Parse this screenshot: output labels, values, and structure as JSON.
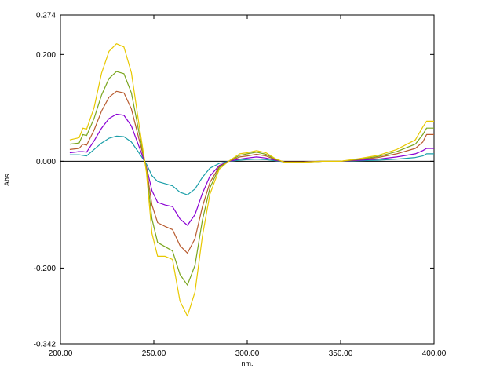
{
  "chart_data": {
    "type": "line",
    "xlabel": "nm.",
    "ylabel": "Abs.",
    "xlim": [
      200,
      400
    ],
    "ylim": [
      -0.342,
      0.274
    ],
    "x_ticks": [
      {
        "value": 200,
        "label": "200.00"
      },
      {
        "value": 250,
        "label": "250.00"
      },
      {
        "value": 300,
        "label": "300.00"
      },
      {
        "value": 350,
        "label": "350.00"
      },
      {
        "value": 400,
        "label": "400.00"
      }
    ],
    "y_ticks": [
      {
        "value": 0.274,
        "label": "0.274"
      },
      {
        "value": 0.2,
        "label": "0.200"
      },
      {
        "value": 0.0,
        "label": "0.000"
      },
      {
        "value": -0.2,
        "label": "-0.200"
      },
      {
        "value": -0.342,
        "label": "-0.342"
      }
    ],
    "grid": false,
    "legend": "none",
    "baseline": 0,
    "series": [
      {
        "color": "#1a9ea8",
        "points": [
          [
            205,
            0.012
          ],
          [
            210,
            0.012
          ],
          [
            212,
            0.011
          ],
          [
            214,
            0.01
          ],
          [
            218,
            0.022
          ],
          [
            222,
            0.034
          ],
          [
            226,
            0.043
          ],
          [
            230,
            0.047
          ],
          [
            234,
            0.046
          ],
          [
            238,
            0.036
          ],
          [
            242,
            0.016
          ],
          [
            246,
            -0.005
          ],
          [
            249,
            -0.027
          ],
          [
            252,
            -0.038
          ],
          [
            256,
            -0.042
          ],
          [
            260,
            -0.046
          ],
          [
            264,
            -0.058
          ],
          [
            268,
            -0.063
          ],
          [
            272,
            -0.052
          ],
          [
            276,
            -0.03
          ],
          [
            280,
            -0.013
          ],
          [
            285,
            -0.004
          ],
          [
            290,
            0.0
          ],
          [
            296,
            0.002
          ],
          [
            300,
            0.003
          ],
          [
            305,
            0.004
          ],
          [
            310,
            0.003
          ],
          [
            315,
            0.001
          ],
          [
            320,
            -0.001
          ],
          [
            330,
            -0.001
          ],
          [
            340,
            0.0
          ],
          [
            350,
            0.0
          ],
          [
            360,
            0.001
          ],
          [
            370,
            0.002
          ],
          [
            380,
            0.004
          ],
          [
            390,
            0.007
          ],
          [
            394,
            0.01
          ],
          [
            396,
            0.014
          ],
          [
            400,
            0.014
          ]
        ]
      },
      {
        "color": "#8a00d4",
        "points": [
          [
            205,
            0.016
          ],
          [
            210,
            0.018
          ],
          [
            212,
            0.018
          ],
          [
            214,
            0.017
          ],
          [
            218,
            0.038
          ],
          [
            222,
            0.062
          ],
          [
            226,
            0.08
          ],
          [
            230,
            0.088
          ],
          [
            234,
            0.086
          ],
          [
            238,
            0.066
          ],
          [
            242,
            0.028
          ],
          [
            246,
            -0.01
          ],
          [
            249,
            -0.055
          ],
          [
            252,
            -0.077
          ],
          [
            256,
            -0.082
          ],
          [
            260,
            -0.085
          ],
          [
            264,
            -0.108
          ],
          [
            268,
            -0.12
          ],
          [
            272,
            -0.1
          ],
          [
            276,
            -0.06
          ],
          [
            280,
            -0.028
          ],
          [
            285,
            -0.008
          ],
          [
            290,
            0.0
          ],
          [
            296,
            0.004
          ],
          [
            300,
            0.006
          ],
          [
            305,
            0.008
          ],
          [
            310,
            0.006
          ],
          [
            315,
            0.002
          ],
          [
            320,
            -0.001
          ],
          [
            330,
            -0.001
          ],
          [
            340,
            0.0
          ],
          [
            350,
            0.0
          ],
          [
            360,
            0.002
          ],
          [
            370,
            0.004
          ],
          [
            380,
            0.008
          ],
          [
            390,
            0.014
          ],
          [
            394,
            0.02
          ],
          [
            396,
            0.024
          ],
          [
            400,
            0.024
          ]
        ]
      },
      {
        "color": "#b85c30",
        "points": [
          [
            205,
            0.022
          ],
          [
            210,
            0.024
          ],
          [
            212,
            0.032
          ],
          [
            214,
            0.03
          ],
          [
            218,
            0.058
          ],
          [
            222,
            0.094
          ],
          [
            226,
            0.12
          ],
          [
            230,
            0.131
          ],
          [
            234,
            0.128
          ],
          [
            238,
            0.098
          ],
          [
            242,
            0.042
          ],
          [
            246,
            -0.012
          ],
          [
            249,
            -0.082
          ],
          [
            252,
            -0.115
          ],
          [
            256,
            -0.122
          ],
          [
            260,
            -0.128
          ],
          [
            264,
            -0.158
          ],
          [
            268,
            -0.172
          ],
          [
            272,
            -0.145
          ],
          [
            276,
            -0.085
          ],
          [
            280,
            -0.04
          ],
          [
            285,
            -0.01
          ],
          [
            290,
            0.0
          ],
          [
            296,
            0.008
          ],
          [
            300,
            0.01
          ],
          [
            305,
            0.013
          ],
          [
            310,
            0.01
          ],
          [
            315,
            0.003
          ],
          [
            320,
            -0.001
          ],
          [
            330,
            -0.001
          ],
          [
            340,
            0.0
          ],
          [
            350,
            0.0
          ],
          [
            360,
            0.003
          ],
          [
            370,
            0.007
          ],
          [
            380,
            0.014
          ],
          [
            390,
            0.024
          ],
          [
            394,
            0.036
          ],
          [
            396,
            0.05
          ],
          [
            400,
            0.05
          ]
        ]
      },
      {
        "color": "#7aa51e",
        "points": [
          [
            205,
            0.032
          ],
          [
            210,
            0.034
          ],
          [
            212,
            0.05
          ],
          [
            214,
            0.048
          ],
          [
            218,
            0.08
          ],
          [
            222,
            0.124
          ],
          [
            226,
            0.155
          ],
          [
            230,
            0.168
          ],
          [
            234,
            0.164
          ],
          [
            238,
            0.128
          ],
          [
            242,
            0.055
          ],
          [
            246,
            -0.015
          ],
          [
            249,
            -0.108
          ],
          [
            252,
            -0.152
          ],
          [
            256,
            -0.16
          ],
          [
            260,
            -0.168
          ],
          [
            264,
            -0.212
          ],
          [
            268,
            -0.232
          ],
          [
            272,
            -0.195
          ],
          [
            276,
            -0.11
          ],
          [
            280,
            -0.05
          ],
          [
            285,
            -0.012
          ],
          [
            290,
            0.0
          ],
          [
            296,
            0.011
          ],
          [
            300,
            0.014
          ],
          [
            305,
            0.017
          ],
          [
            310,
            0.013
          ],
          [
            315,
            0.004
          ],
          [
            320,
            -0.002
          ],
          [
            330,
            -0.002
          ],
          [
            340,
            0.0
          ],
          [
            350,
            0.0
          ],
          [
            360,
            0.004
          ],
          [
            370,
            0.009
          ],
          [
            380,
            0.018
          ],
          [
            390,
            0.032
          ],
          [
            394,
            0.05
          ],
          [
            396,
            0.062
          ],
          [
            400,
            0.062
          ]
        ]
      },
      {
        "color": "#e8c800",
        "points": [
          [
            205,
            0.04
          ],
          [
            210,
            0.044
          ],
          [
            212,
            0.062
          ],
          [
            214,
            0.06
          ],
          [
            218,
            0.1
          ],
          [
            222,
            0.165
          ],
          [
            226,
            0.206
          ],
          [
            230,
            0.22
          ],
          [
            234,
            0.214
          ],
          [
            238,
            0.166
          ],
          [
            242,
            0.07
          ],
          [
            246,
            -0.02
          ],
          [
            249,
            -0.135
          ],
          [
            252,
            -0.178
          ],
          [
            256,
            -0.178
          ],
          [
            260,
            -0.184
          ],
          [
            264,
            -0.262
          ],
          [
            268,
            -0.29
          ],
          [
            272,
            -0.245
          ],
          [
            276,
            -0.14
          ],
          [
            280,
            -0.062
          ],
          [
            285,
            -0.015
          ],
          [
            290,
            0.0
          ],
          [
            296,
            0.014
          ],
          [
            300,
            0.016
          ],
          [
            305,
            0.02
          ],
          [
            310,
            0.016
          ],
          [
            315,
            0.005
          ],
          [
            320,
            -0.002
          ],
          [
            330,
            -0.002
          ],
          [
            340,
            0.0
          ],
          [
            350,
            0.0
          ],
          [
            360,
            0.005
          ],
          [
            370,
            0.011
          ],
          [
            380,
            0.022
          ],
          [
            390,
            0.04
          ],
          [
            394,
            0.064
          ],
          [
            396,
            0.075
          ],
          [
            400,
            0.075
          ]
        ]
      }
    ]
  }
}
